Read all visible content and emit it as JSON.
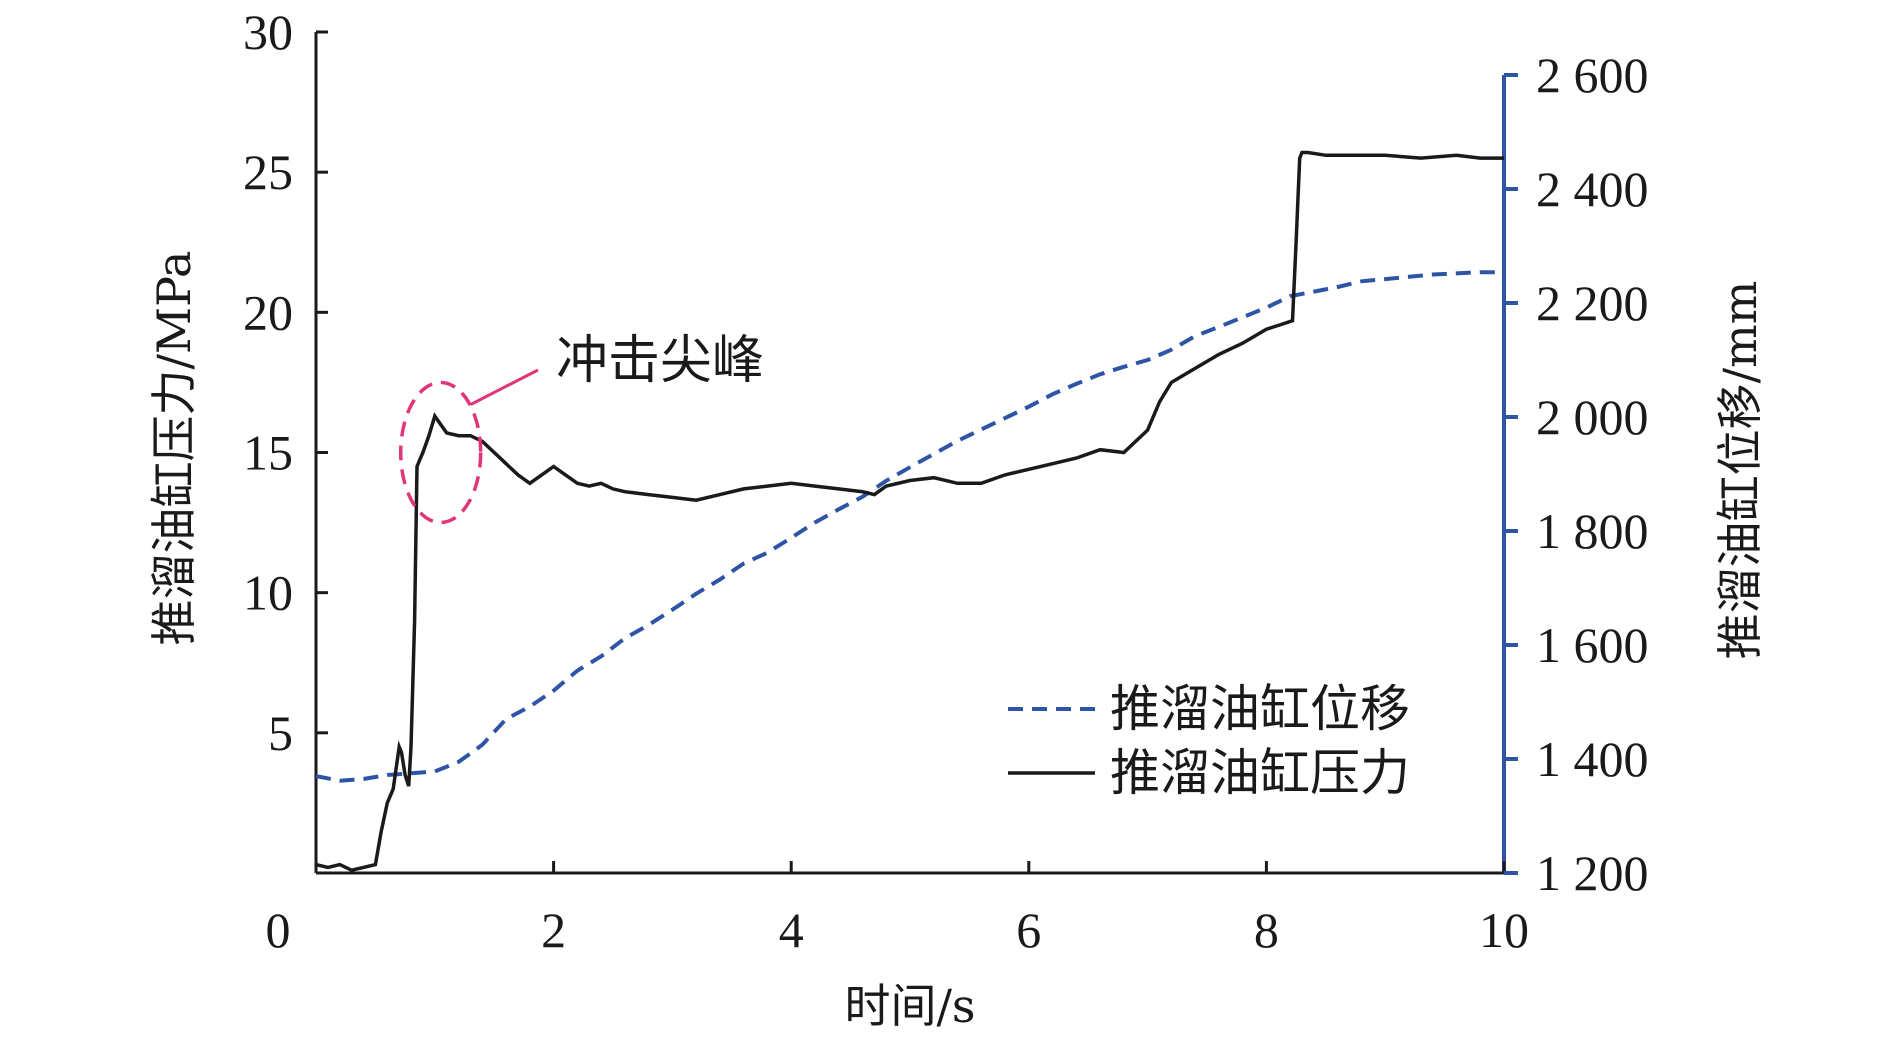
{
  "chart_data": {
    "type": "line",
    "xlabel": "时间/s",
    "ylabel_left": "推溜油缸压力/MPa",
    "ylabel_right": "推溜油缸位移/mm",
    "xlim": [
      0,
      10
    ],
    "ylim_left": [
      0,
      30
    ],
    "ylim_right": [
      1200,
      2600
    ],
    "x_ticks": [
      0,
      2,
      4,
      6,
      8,
      10
    ],
    "y_left_ticks": [
      5,
      10,
      15,
      20,
      25,
      30
    ],
    "y_right_ticks": [
      1200,
      1400,
      1600,
      1800,
      2000,
      2200,
      2400,
      2600
    ],
    "x_tick_labels": [
      "0",
      "2",
      "4",
      "6",
      "8",
      "10"
    ],
    "y_left_tick_labels": [
      "5",
      "10",
      "15",
      "20",
      "25",
      "30"
    ],
    "y_right_tick_labels": [
      "1 200",
      "1 400",
      "1 600",
      "1 800",
      "2 000",
      "2 200",
      "2 400",
      "2 600"
    ],
    "grid": false,
    "legend_position": "bottom-right",
    "colors": {
      "pressure": "#1a1a1a",
      "displacement": "#2e54a5",
      "right_axis": "#2e54a5",
      "annotation": "#e0357a"
    },
    "annotation": {
      "text": "冲击尖峰",
      "target_x": 1.05,
      "target_y": 15.0
    },
    "series": [
      {
        "name": "推溜油缸位移",
        "axis": "right",
        "style": "dashed",
        "x": [
          0,
          0.2,
          0.4,
          0.6,
          0.8,
          1.0,
          1.2,
          1.4,
          1.6,
          1.8,
          2.0,
          2.2,
          2.4,
          2.6,
          2.8,
          3.0,
          3.2,
          3.4,
          3.6,
          3.8,
          4.0,
          4.2,
          4.4,
          4.6,
          4.8,
          5.0,
          5.2,
          5.4,
          5.6,
          5.8,
          6.0,
          6.2,
          6.4,
          6.6,
          6.8,
          7.0,
          7.2,
          7.4,
          7.6,
          7.8,
          8.0,
          8.2,
          8.4,
          8.6,
          8.8,
          9.0,
          9.2,
          9.4,
          9.6,
          9.8,
          10.0
        ],
        "y": [
          1370,
          1362,
          1365,
          1372,
          1375,
          1378,
          1395,
          1425,
          1470,
          1492,
          1520,
          1555,
          1580,
          1612,
          1635,
          1662,
          1690,
          1715,
          1743,
          1762,
          1788,
          1815,
          1838,
          1860,
          1888,
          1912,
          1935,
          1958,
          1978,
          1998,
          2018,
          2040,
          2058,
          2075,
          2088,
          2100,
          2118,
          2142,
          2158,
          2175,
          2192,
          2212,
          2220,
          2228,
          2238,
          2242,
          2246,
          2250,
          2252,
          2254,
          2254
        ]
      },
      {
        "name": "推溜油缸压力",
        "axis": "left",
        "style": "solid",
        "x": [
          0,
          0.1,
          0.2,
          0.3,
          0.4,
          0.5,
          0.55,
          0.6,
          0.65,
          0.7,
          0.72,
          0.75,
          0.78,
          0.8,
          0.83,
          0.85,
          0.88,
          0.9,
          0.95,
          1.0,
          1.05,
          1.1,
          1.2,
          1.3,
          1.4,
          1.5,
          1.6,
          1.7,
          1.8,
          1.9,
          2.0,
          2.1,
          2.2,
          2.3,
          2.4,
          2.5,
          2.6,
          2.8,
          3.0,
          3.2,
          3.4,
          3.6,
          3.8,
          4.0,
          4.2,
          4.4,
          4.6,
          4.7,
          4.8,
          5.0,
          5.2,
          5.4,
          5.6,
          5.8,
          6.0,
          6.2,
          6.4,
          6.6,
          6.8,
          7.0,
          7.1,
          7.2,
          7.4,
          7.6,
          7.8,
          8.0,
          8.15,
          8.22,
          8.25,
          8.28,
          8.3,
          8.35,
          8.5,
          8.7,
          9.0,
          9.3,
          9.6,
          9.8,
          10.0
        ],
        "y": [
          0.3,
          0.2,
          0.3,
          0.1,
          0.2,
          0.3,
          1.5,
          2.5,
          3.0,
          4.5,
          4.3,
          3.5,
          3.1,
          4.5,
          9.0,
          14.5,
          14.8,
          15.0,
          15.6,
          16.3,
          16.0,
          15.7,
          15.6,
          15.6,
          15.4,
          15.0,
          14.6,
          14.2,
          13.9,
          14.2,
          14.5,
          14.2,
          13.9,
          13.8,
          13.9,
          13.7,
          13.6,
          13.5,
          13.4,
          13.3,
          13.5,
          13.7,
          13.8,
          13.9,
          13.8,
          13.7,
          13.6,
          13.5,
          13.8,
          14.0,
          14.1,
          13.9,
          13.9,
          14.2,
          14.4,
          14.6,
          14.8,
          15.1,
          15.0,
          15.8,
          16.8,
          17.5,
          18.0,
          18.5,
          18.9,
          19.4,
          19.6,
          19.7,
          22.5,
          25.5,
          25.7,
          25.7,
          25.6,
          25.6,
          25.6,
          25.5,
          25.6,
          25.5,
          25.5
        ]
      }
    ]
  }
}
